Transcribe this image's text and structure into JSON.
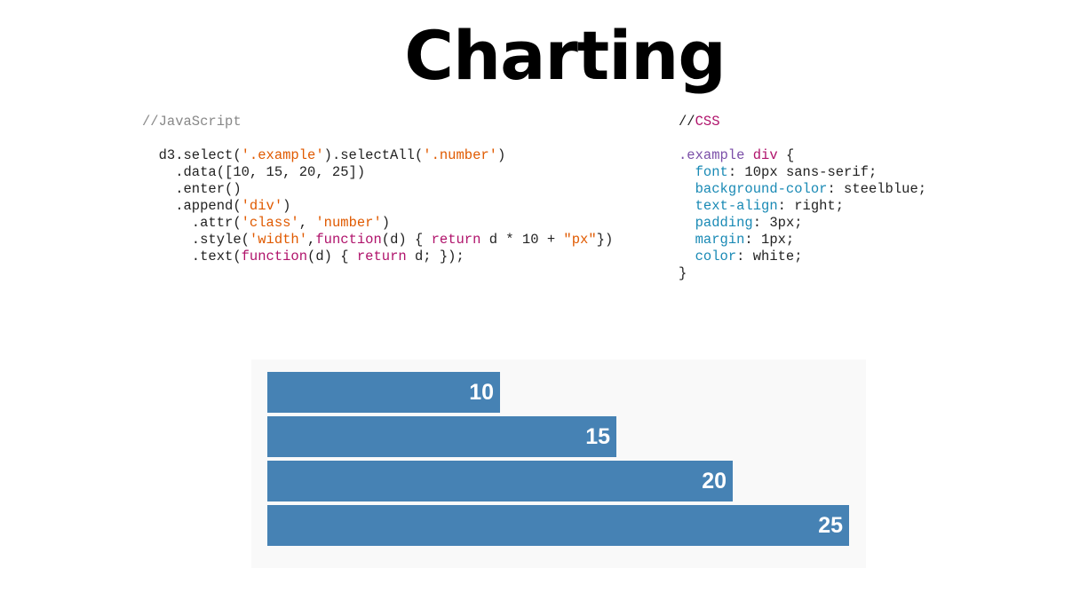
{
  "slide": {
    "title": "Charting"
  },
  "code_js": [
    [
      [
        "//JavaScript",
        "comment"
      ]
    ],
    [],
    [
      [
        "  d3.select(",
        ""
      ],
      [
        "'.example'",
        "str"
      ],
      [
        ").selectAll(",
        ""
      ],
      [
        "'.number'",
        "str"
      ],
      [
        ")",
        ""
      ]
    ],
    [
      [
        "    .data([10, 15, 20, 25])",
        ""
      ]
    ],
    [
      [
        "    .enter()",
        ""
      ]
    ],
    [
      [
        "    .append(",
        ""
      ],
      [
        "'div'",
        "str"
      ],
      [
        ")",
        ""
      ]
    ],
    [
      [
        "      .attr(",
        ""
      ],
      [
        "'class'",
        "str"
      ],
      [
        ", ",
        ""
      ],
      [
        "'number'",
        "str"
      ],
      [
        ")",
        ""
      ]
    ],
    [
      [
        "      .style(",
        ""
      ],
      [
        "'width'",
        "str"
      ],
      [
        ",",
        ""
      ],
      [
        "function",
        "kw"
      ],
      [
        "(d) { ",
        ""
      ],
      [
        "return",
        "kw"
      ],
      [
        " d * 10 + ",
        ""
      ],
      [
        "\"px\"",
        "str"
      ],
      [
        "})",
        ""
      ]
    ],
    [
      [
        "      .text(",
        ""
      ],
      [
        "function",
        "kw"
      ],
      [
        "(d) { ",
        ""
      ],
      [
        "return",
        "kw"
      ],
      [
        " d; });",
        ""
      ]
    ]
  ],
  "code_css": [
    [
      [
        "//",
        ""
      ],
      [
        "CSS",
        "csscm"
      ]
    ],
    [],
    [
      [
        ".example",
        "sel"
      ],
      [
        " ",
        ""
      ],
      [
        "div",
        "kw"
      ],
      [
        " {",
        ""
      ]
    ],
    [
      [
        "  ",
        ""
      ],
      [
        "font",
        "prop"
      ],
      [
        ": 10px sans-serif;",
        ""
      ]
    ],
    [
      [
        "  ",
        ""
      ],
      [
        "background-color",
        "prop"
      ],
      [
        ": steelblue;",
        ""
      ]
    ],
    [
      [
        "  ",
        ""
      ],
      [
        "text-align",
        "prop"
      ],
      [
        ": right;",
        ""
      ]
    ],
    [
      [
        "  ",
        ""
      ],
      [
        "padding",
        "prop"
      ],
      [
        ": 3px;",
        ""
      ]
    ],
    [
      [
        "  ",
        ""
      ],
      [
        "margin",
        "prop"
      ],
      [
        ": 1px;",
        ""
      ]
    ],
    [
      [
        "  ",
        ""
      ],
      [
        "color",
        "prop"
      ],
      [
        ": white;",
        ""
      ]
    ],
    [
      [
        "}",
        ""
      ]
    ]
  ],
  "chart_data": {
    "type": "bar",
    "orientation": "horizontal",
    "values": [
      10,
      15,
      20,
      25
    ],
    "data_labels": [
      "10",
      "15",
      "20",
      "25"
    ],
    "bar_color": "#4682b4",
    "background": "#f9f9f9",
    "grid": false
  }
}
